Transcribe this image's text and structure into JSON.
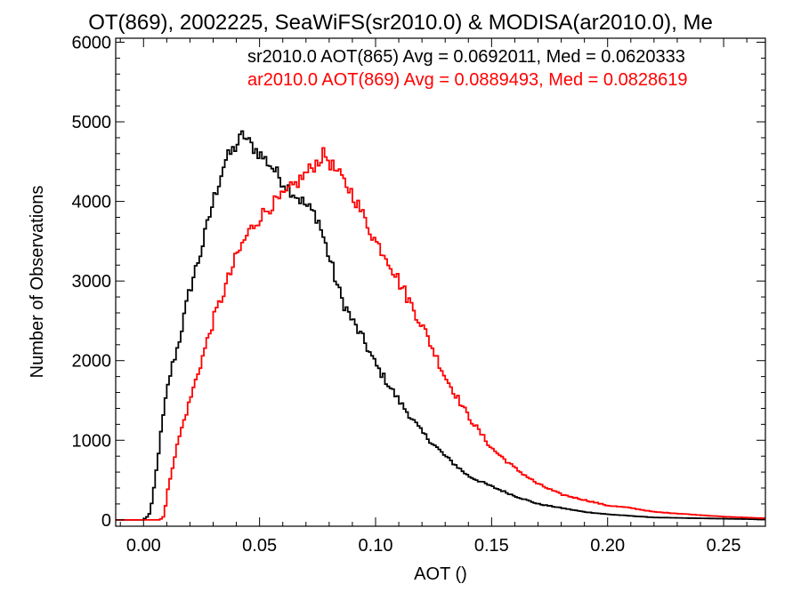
{
  "chart_data": {
    "type": "line",
    "title": "OT(869), 2002225, SeaWiFS(sr2010.0) & MODISA(ar2010.0), Me",
    "xlabel": "AOT ()",
    "ylabel": "Number of Observations",
    "xlim": [
      -0.012,
      0.268
    ],
    "ylim": [
      -80,
      6050
    ],
    "xticks": [
      0.0,
      0.05,
      0.1,
      0.15,
      0.2,
      0.25
    ],
    "xtick_labels": [
      "0.00",
      "0.05",
      "0.10",
      "0.15",
      "0.20",
      "0.25"
    ],
    "yticks": [
      0,
      1000,
      2000,
      3000,
      4000,
      5000,
      6000
    ],
    "ytick_labels": [
      "0",
      "1000",
      "2000",
      "3000",
      "4000",
      "5000",
      "6000"
    ],
    "grid": false,
    "step": "histogram",
    "bin_width": 0.001,
    "annotations": [
      "sr2010.0 AOT(865) Avg = 0.0692011, Med = 0.0620333",
      "ar2010.0 AOT(869) Avg = 0.0889493, Med = 0.0828619"
    ],
    "series": [
      {
        "color": "#000000",
        "x": [
          -0.012,
          0.0,
          0.002,
          0.003,
          0.005,
          0.008,
          0.01,
          0.012,
          0.015,
          0.02,
          0.025,
          0.03,
          0.035,
          0.04,
          0.043,
          0.045,
          0.05,
          0.055,
          0.06,
          0.065,
          0.07,
          0.075,
          0.08,
          0.085,
          0.09,
          0.095,
          0.1,
          0.11,
          0.12,
          0.13,
          0.14,
          0.15,
          0.16,
          0.17,
          0.18,
          0.19,
          0.2,
          0.21,
          0.22,
          0.268
        ],
        "y": [
          0,
          0,
          50,
          100,
          500,
          1200,
          1600,
          1900,
          2200,
          2900,
          3400,
          4000,
          4500,
          4700,
          4850,
          4750,
          4600,
          4450,
          4250,
          4100,
          3950,
          3800,
          3300,
          2800,
          2500,
          2250,
          1950,
          1500,
          1100,
          800,
          550,
          420,
          300,
          200,
          150,
          100,
          70,
          50,
          30,
          5
        ]
      },
      {
        "color": "#ff0000",
        "x": [
          -0.012,
          0.007,
          0.009,
          0.01,
          0.012,
          0.015,
          0.02,
          0.025,
          0.03,
          0.035,
          0.04,
          0.045,
          0.05,
          0.055,
          0.06,
          0.065,
          0.07,
          0.075,
          0.078,
          0.08,
          0.085,
          0.09,
          0.095,
          0.1,
          0.105,
          0.11,
          0.12,
          0.13,
          0.14,
          0.15,
          0.16,
          0.17,
          0.18,
          0.19,
          0.2,
          0.21,
          0.22,
          0.23,
          0.24,
          0.25,
          0.268
        ],
        "y": [
          0,
          0,
          50,
          300,
          600,
          1000,
          1500,
          2000,
          2500,
          2900,
          3300,
          3600,
          3800,
          3950,
          4050,
          4200,
          4350,
          4500,
          4600,
          4500,
          4300,
          4100,
          3800,
          3500,
          3300,
          3000,
          2450,
          1800,
          1300,
          900,
          650,
          450,
          320,
          250,
          180,
          150,
          100,
          80,
          60,
          40,
          20
        ]
      }
    ]
  }
}
